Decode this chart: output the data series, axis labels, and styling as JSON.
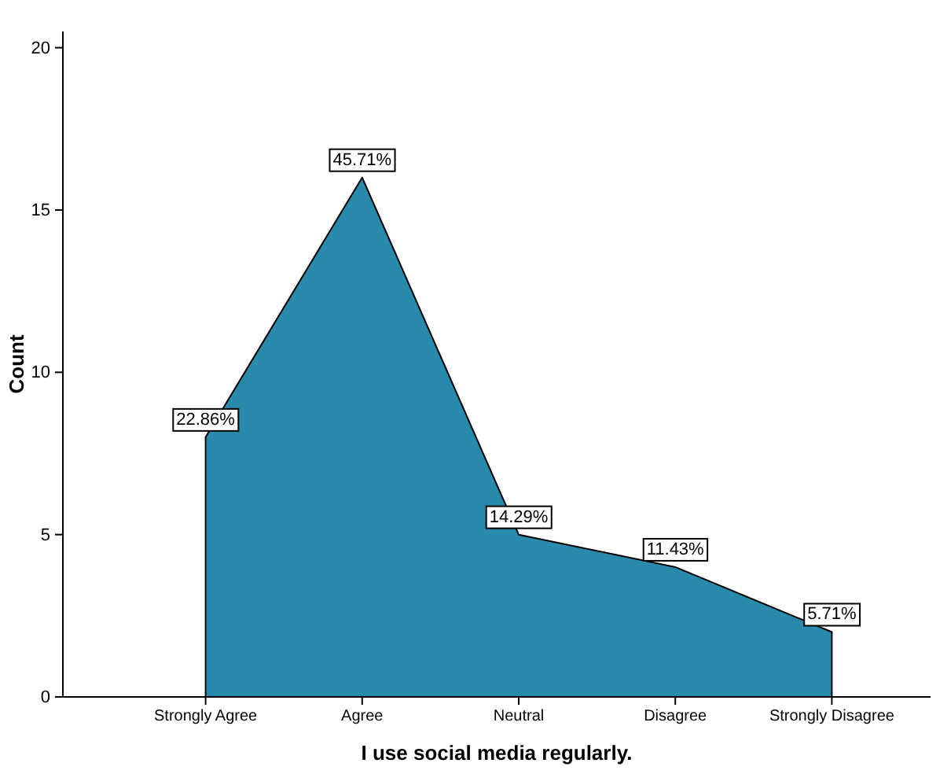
{
  "chart_data": {
    "type": "area",
    "xlabel": "I use social media regularly.",
    "ylabel": "Count",
    "categories": [
      "Strongly Agree",
      "Agree",
      "Neutral",
      "Disagree",
      "Strongly Disagree"
    ],
    "values": [
      8,
      16,
      5,
      4,
      2
    ],
    "annotations": [
      {
        "text": "22.86%",
        "x": "Strongly Agree",
        "y": 8
      },
      {
        "text": "45.71%",
        "x": "Agree",
        "y": 16
      },
      {
        "text": "14.29%",
        "x": "Neutral",
        "y": 5
      },
      {
        "text": "11.43%",
        "x": "Disagree",
        "y": 4
      },
      {
        "text": "5.71%",
        "x": "Strongly Disagree",
        "y": 2
      }
    ],
    "color": "#2a8aab",
    "ylim": [
      0,
      20.5
    ],
    "yticks": [
      0,
      5,
      10,
      15,
      20
    ],
    "grid": false,
    "legend": false
  }
}
